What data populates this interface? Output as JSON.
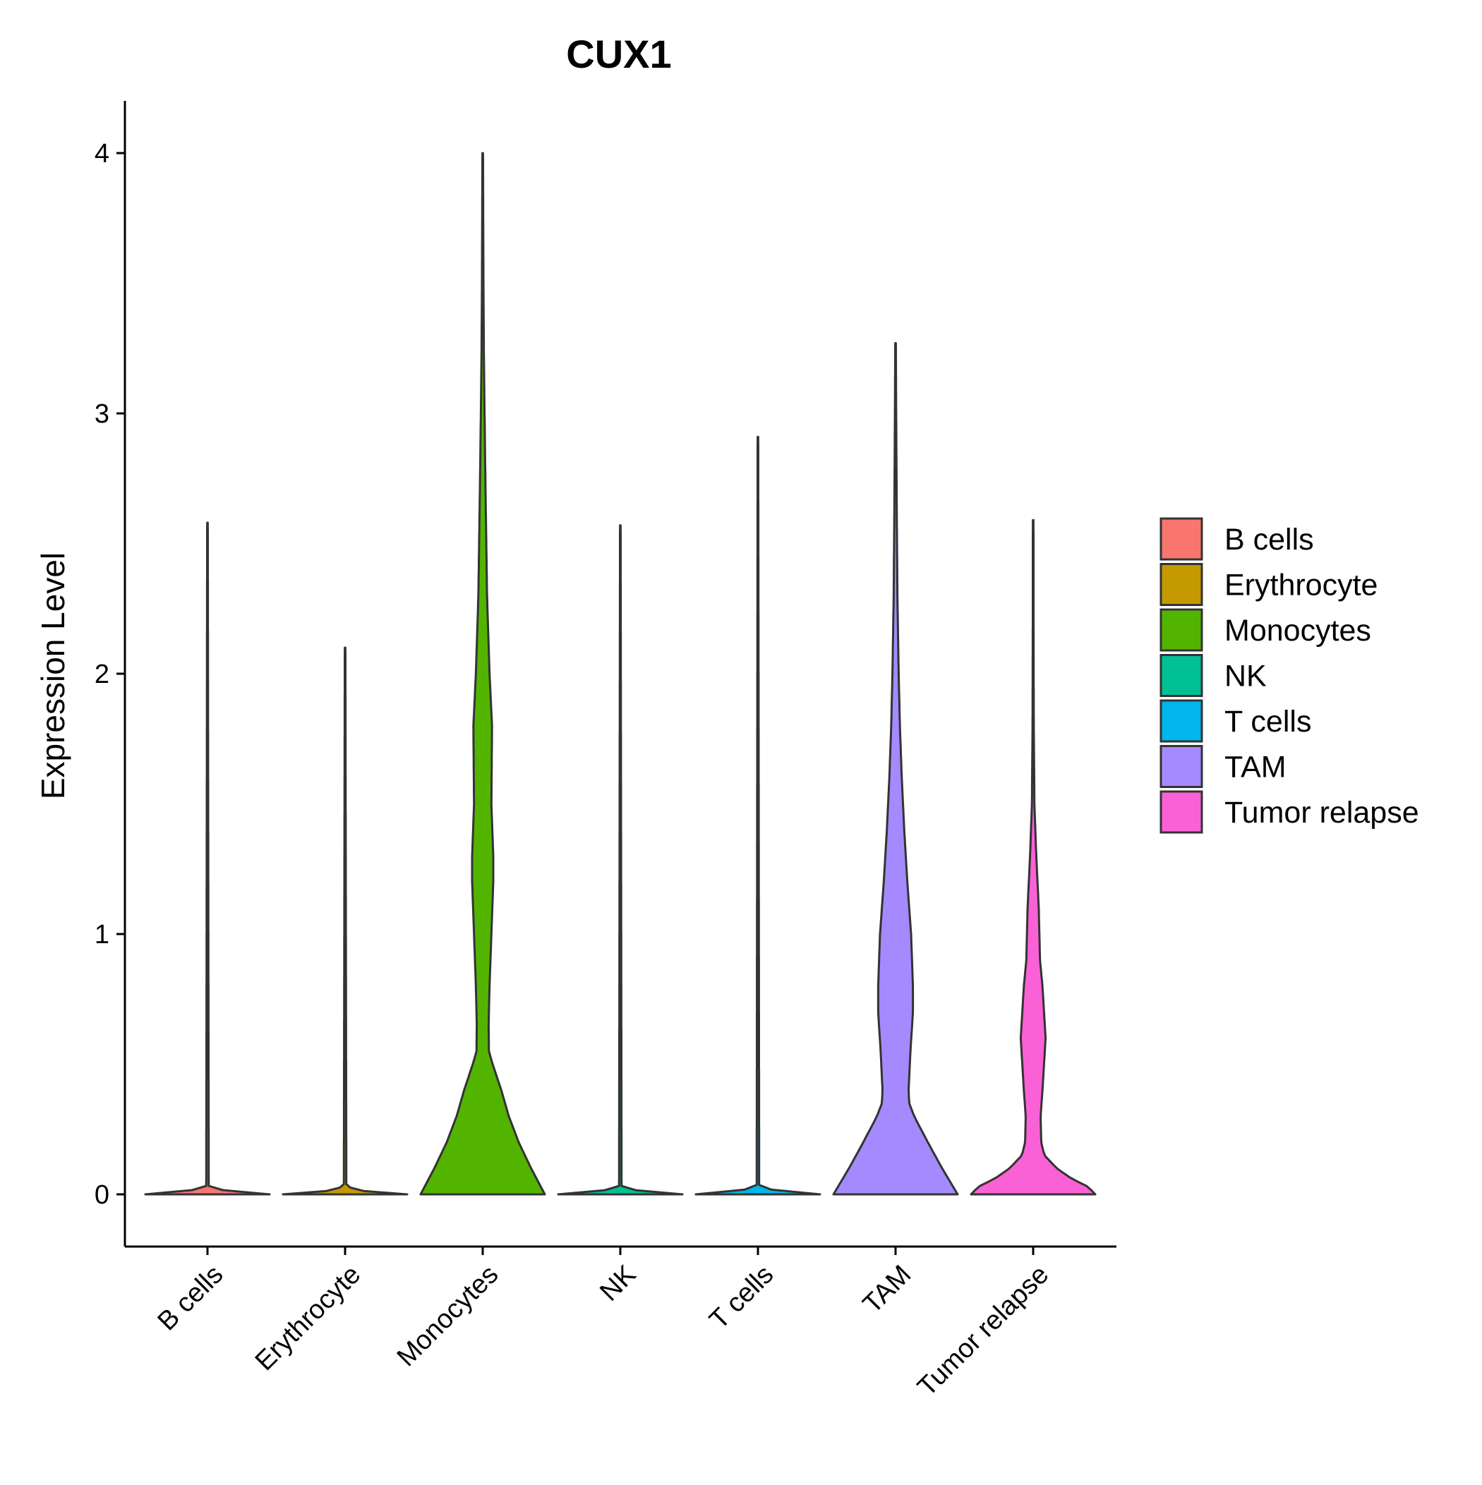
{
  "chart_data": {
    "type": "violin",
    "title": "CUX1",
    "xlabel": "",
    "ylabel": "Expression Level",
    "ylim": [
      -0.2,
      4.2
    ],
    "yticks": [
      0,
      1,
      2,
      3,
      4
    ],
    "categories": [
      "B cells",
      "Erythrocyte",
      "Monocytes",
      "NK",
      "T cells",
      "TAM",
      "Tumor relapse"
    ],
    "series": [
      {
        "name": "B cells",
        "color": "#F8766D",
        "max": 2.58,
        "density": [
          [
            0,
            1.0
          ],
          [
            0.01,
            0.35
          ],
          [
            0.03,
            0.02
          ],
          [
            2.58,
            0.005
          ]
        ]
      },
      {
        "name": "Erythrocyte",
        "color": "#C49A00",
        "max": 2.1,
        "density": [
          [
            0,
            1.0
          ],
          [
            0.01,
            0.35
          ],
          [
            0.03,
            0.02
          ],
          [
            2.1,
            0.005
          ]
        ]
      },
      {
        "name": "Monocytes",
        "color": "#53B400",
        "max": 4.0,
        "density": [
          [
            0.0,
            1.0
          ],
          [
            0.1,
            0.78
          ],
          [
            0.2,
            0.58
          ],
          [
            0.3,
            0.42
          ],
          [
            0.4,
            0.3
          ],
          [
            0.5,
            0.16
          ],
          [
            0.55,
            0.1
          ],
          [
            0.65,
            0.095
          ],
          [
            0.8,
            0.11
          ],
          [
            1.0,
            0.14
          ],
          [
            1.2,
            0.17
          ],
          [
            1.3,
            0.17
          ],
          [
            1.5,
            0.14
          ],
          [
            1.8,
            0.15
          ],
          [
            2.0,
            0.11
          ],
          [
            2.3,
            0.07
          ],
          [
            2.8,
            0.04
          ],
          [
            3.2,
            0.02
          ],
          [
            3.5,
            0.012
          ],
          [
            4.0,
            0.005
          ]
        ]
      },
      {
        "name": "NK",
        "color": "#00C094",
        "max": 2.57,
        "density": [
          [
            0,
            1.0
          ],
          [
            0.01,
            0.35
          ],
          [
            0.03,
            0.02
          ],
          [
            2.57,
            0.005
          ]
        ]
      },
      {
        "name": "T cells",
        "color": "#00B6EB",
        "max": 2.91,
        "density": [
          [
            0,
            1.0
          ],
          [
            0.01,
            0.35
          ],
          [
            0.03,
            0.02
          ],
          [
            2.91,
            0.005
          ]
        ]
      },
      {
        "name": "TAM",
        "color": "#A58AFF",
        "max": 3.27,
        "density": [
          [
            0.0,
            1.0
          ],
          [
            0.1,
            0.75
          ],
          [
            0.2,
            0.52
          ],
          [
            0.3,
            0.3
          ],
          [
            0.35,
            0.22
          ],
          [
            0.4,
            0.21
          ],
          [
            0.55,
            0.24
          ],
          [
            0.7,
            0.28
          ],
          [
            0.8,
            0.28
          ],
          [
            1.0,
            0.25
          ],
          [
            1.2,
            0.19
          ],
          [
            1.4,
            0.14
          ],
          [
            1.6,
            0.1
          ],
          [
            1.8,
            0.07
          ],
          [
            2.0,
            0.05
          ],
          [
            2.3,
            0.03
          ],
          [
            2.6,
            0.02
          ],
          [
            3.0,
            0.01
          ],
          [
            3.27,
            0.005
          ]
        ]
      },
      {
        "name": "Tumor relapse",
        "color": "#FB61D7",
        "max": 2.59,
        "density": [
          [
            0.0,
            1.0
          ],
          [
            0.03,
            0.88
          ],
          [
            0.06,
            0.62
          ],
          [
            0.1,
            0.38
          ],
          [
            0.15,
            0.18
          ],
          [
            0.2,
            0.13
          ],
          [
            0.3,
            0.12
          ],
          [
            0.4,
            0.15
          ],
          [
            0.6,
            0.2
          ],
          [
            0.8,
            0.15
          ],
          [
            0.9,
            0.11
          ],
          [
            1.0,
            0.1
          ],
          [
            1.1,
            0.09
          ],
          [
            1.3,
            0.05
          ],
          [
            1.5,
            0.02
          ],
          [
            1.8,
            0.01
          ],
          [
            2.2,
            0.006
          ],
          [
            2.59,
            0.005
          ]
        ]
      }
    ],
    "legend": {
      "position": "right",
      "entries": [
        "B cells",
        "Erythrocyte",
        "Monocytes",
        "NK",
        "T cells",
        "TAM",
        "Tumor relapse"
      ]
    },
    "grid": false
  }
}
